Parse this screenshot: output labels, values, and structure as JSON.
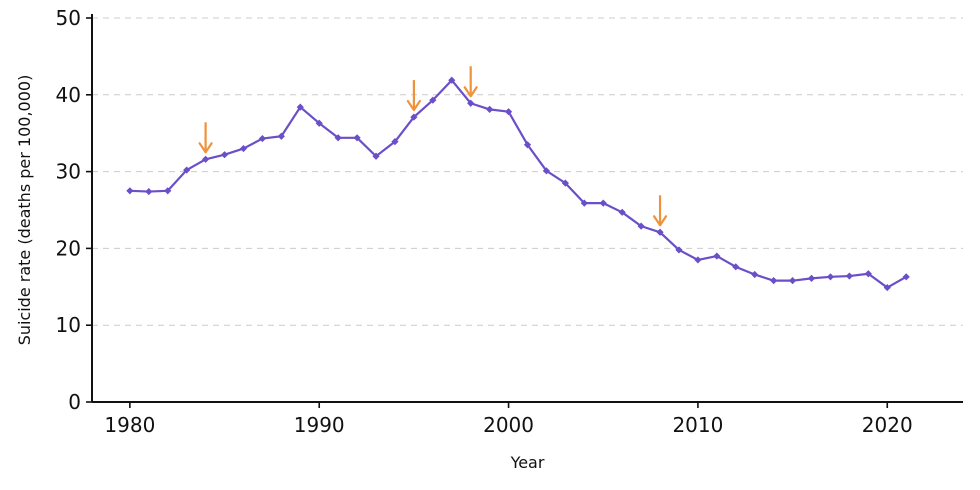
{
  "chart_data": {
    "type": "line",
    "title": "",
    "xlabel": "Year",
    "ylabel": "Suicide rate (deaths per 100,000)",
    "xlim": [
      1978,
      2024
    ],
    "ylim": [
      0,
      50
    ],
    "xticks": [
      1980,
      1990,
      2000,
      2010,
      2020
    ],
    "yticks": [
      0,
      10,
      20,
      30,
      40,
      50
    ],
    "grid": "horizontal dashed",
    "legend": "none",
    "colors": {
      "line": "#6a4fc8",
      "arrow": "#f0923a",
      "axis": "#111111",
      "grid": "#cccccc"
    },
    "series": [
      {
        "x": [
          1980,
          1981,
          1982,
          1983,
          1984,
          1985,
          1986,
          1987,
          1988,
          1989,
          1990,
          1991,
          1992,
          1993,
          1994,
          1995,
          1996,
          1997,
          1998,
          1999,
          2000,
          2001,
          2002,
          2003,
          2004,
          2005,
          2006,
          2007,
          2008,
          2009,
          2010,
          2011,
          2012,
          2013,
          2014,
          2015,
          2016,
          2017,
          2018,
          2019,
          2020,
          2021
        ],
        "values": [
          27.5,
          27.4,
          27.5,
          30.2,
          31.6,
          32.2,
          33.0,
          34.3,
          34.6,
          38.4,
          36.3,
          34.4,
          34.4,
          32.0,
          33.9,
          37.1,
          39.3,
          41.9,
          38.9,
          38.1,
          37.8,
          33.5,
          30.1,
          28.5,
          25.9,
          25.9,
          24.7,
          22.9,
          22.1,
          19.8,
          18.5,
          19.0,
          17.6,
          16.6,
          15.8,
          15.8,
          16.1,
          16.3,
          16.4,
          16.7,
          14.9,
          16.3
        ]
      }
    ],
    "annotations": [
      {
        "type": "arrow",
        "x": 1984
      },
      {
        "type": "arrow",
        "x": 1995
      },
      {
        "type": "arrow",
        "x": 1998
      },
      {
        "type": "arrow",
        "x": 2008
      }
    ]
  }
}
